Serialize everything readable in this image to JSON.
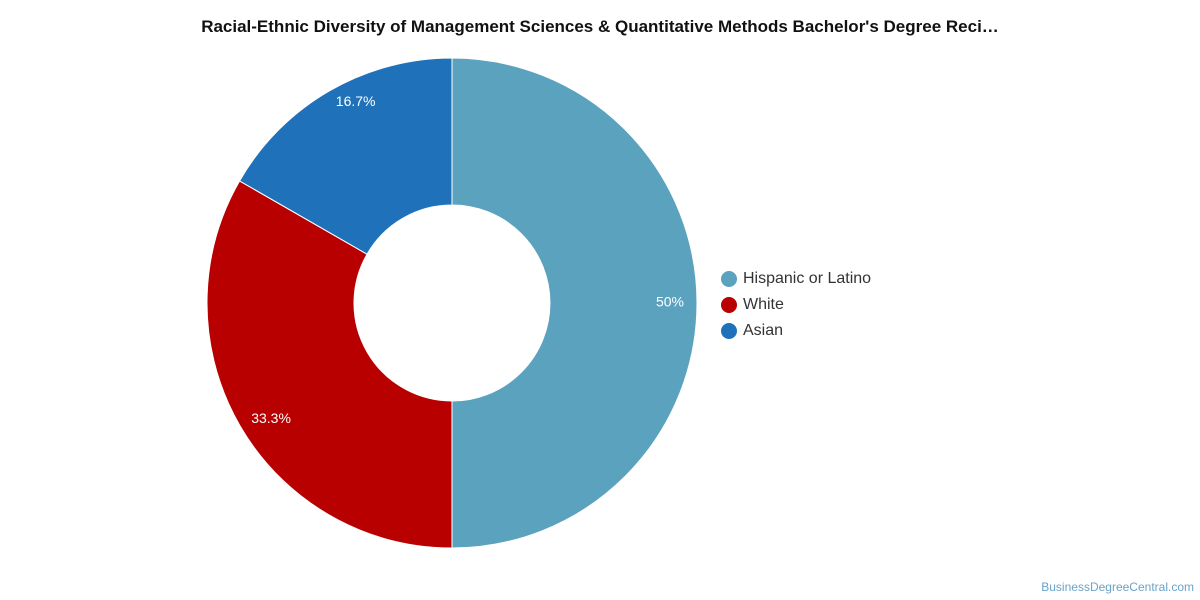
{
  "chart_data": {
    "type": "pie",
    "title": "Racial-Ethnic Diversity of Management Sciences & Quantitative Methods Bachelor's Degree Reci…",
    "hole": "donut",
    "legend_position": "right",
    "slices": [
      {
        "label": "Hispanic or Latino",
        "value": 50,
        "display": "50%",
        "color": "#5ba2bf"
      },
      {
        "label": "White",
        "value": 33.3,
        "display": "33.3%",
        "color": "#b80000"
      },
      {
        "label": "Asian",
        "value": 16.7,
        "display": "16.7%",
        "color": "#1f72b9"
      }
    ]
  },
  "source": "BusinessDegreeCentral.com"
}
